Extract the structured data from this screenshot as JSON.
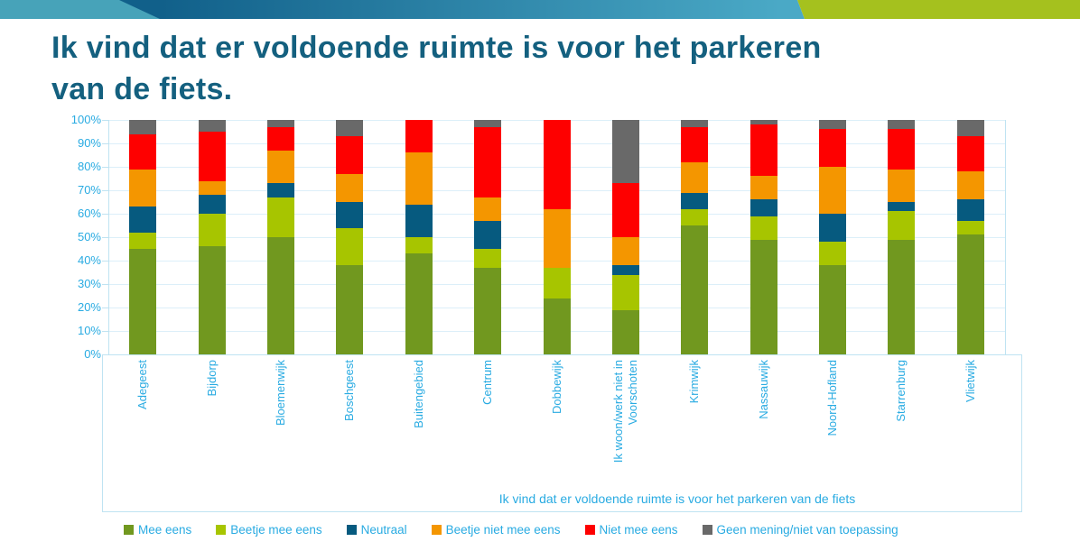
{
  "slide": {
    "title_line1": "Ik vind dat er voldoende ruimte is voor het parkeren",
    "title_line2": "van de fiets."
  },
  "chart_data": {
    "type": "bar",
    "stacked": true,
    "orientation": "vertical",
    "axis_title": "Ik vind dat er voldoende ruimte is voor het parkeren van de fiets",
    "grid": true,
    "legend_position": "bottom",
    "y_axis": {
      "min": 0,
      "max": 100,
      "tick_step": 10,
      "tick_labels": [
        "0%",
        "10%",
        "20%",
        "30%",
        "40%",
        "50%",
        "60%",
        "70%",
        "80%",
        "90%",
        "100%"
      ]
    },
    "categories": [
      "Adegeest",
      "Bijdorp",
      "Bloemenwijk",
      "Boschgeest",
      "Buitengebied",
      "Centrum",
      "Dobbewijk",
      "Ik woon/werk niet in Voorschoten",
      "Krimwijk",
      "Nassauwijk",
      "Noord-Hofland",
      "Starrenburg",
      "Vlietwijk"
    ],
    "series": [
      {
        "name": "Mee eens",
        "color": "#71981F",
        "values": [
          45,
          46,
          50,
          38,
          43,
          37,
          24,
          19,
          55,
          49,
          38,
          49,
          51
        ]
      },
      {
        "name": "Beetje mee eens",
        "color": "#A7C500",
        "values": [
          7,
          14,
          17,
          16,
          7,
          8,
          13,
          15,
          7,
          10,
          10,
          12,
          6
        ]
      },
      {
        "name": "Neutraal",
        "color": "#065A7F",
        "values": [
          11,
          8,
          6,
          11,
          14,
          12,
          0,
          4,
          7,
          7,
          12,
          4,
          9
        ]
      },
      {
        "name": "Beetje niet mee eens",
        "color": "#F49600",
        "values": [
          16,
          6,
          14,
          12,
          22,
          10,
          25,
          12,
          13,
          10,
          20,
          14,
          12
        ]
      },
      {
        "name": "Niet mee eens",
        "color": "#FE0000",
        "values": [
          15,
          21,
          10,
          16,
          14,
          30,
          38,
          23,
          15,
          22,
          16,
          17,
          15
        ]
      },
      {
        "name": "Geen mening/niet van toepassing",
        "color": "#696969",
        "values": [
          6,
          5,
          3,
          7,
          0,
          3,
          0,
          27,
          3,
          2,
          4,
          4,
          7
        ]
      }
    ]
  },
  "theme": {
    "title_color": "#14607F",
    "axis_text_color": "#29ABE2",
    "gridline_color": "#DCEFF9",
    "frame_color": "#BFE3F2",
    "banner_teal": "#47A3B9",
    "banner_dark_start": "#11608A",
    "banner_dark_end": "#4AA9C6",
    "banner_green": "#A5C11E"
  }
}
